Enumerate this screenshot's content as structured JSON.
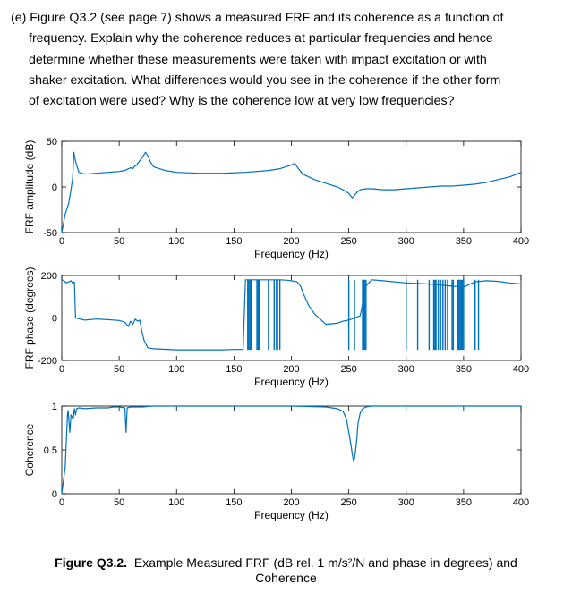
{
  "question": {
    "lines": [
      "(e) Figure Q3.2 (see page 7) shows a measured FRF and its coherence as a function of",
      "frequency. Explain why the coherence reduces at particular frequencies and hence",
      "determine whether these measurements were taken with impact excitation or with",
      "shaker excitation. What differences would you see in the coherence if the other form",
      "of excitation were used? Why is the coherence low at very low frequencies?"
    ]
  },
  "figure": {
    "caption_label": "Figure Q3.2.",
    "caption_text_1": "Example Measured FRF (dB rel. 1 m/s²/N and phase in degrees) and",
    "caption_text_2": "Coherence"
  },
  "chart_data": [
    {
      "type": "line",
      "title": "",
      "xlabel": "Frequency (Hz)",
      "ylabel": "FRF amplitude (dB)",
      "xlim": [
        0,
        400
      ],
      "ylim": [
        -50,
        50
      ],
      "xticks": [
        "0",
        "50",
        "100",
        "150",
        "200",
        "250",
        "300",
        "350",
        "400"
      ],
      "yticks": [
        "-50",
        "0",
        "50"
      ],
      "color": "#0072BD",
      "series": [
        {
          "x": [
            0,
            3,
            6,
            8,
            9.5,
            10.5,
            12,
            15,
            20,
            30,
            40,
            50,
            55,
            60,
            62,
            63,
            65,
            70,
            73,
            75,
            77,
            80,
            90,
            100,
            120,
            140,
            160,
            180,
            190,
            195,
            200,
            203,
            205,
            210,
            220,
            230,
            240,
            245,
            250,
            253,
            255,
            258,
            260,
            265,
            270,
            280,
            290,
            300,
            310,
            320,
            330,
            340,
            350,
            360,
            370,
            380,
            390,
            400
          ],
          "y": [
            -50,
            -30,
            -18,
            -3,
            10,
            38,
            28,
            16,
            14,
            15,
            16,
            17,
            18,
            21,
            20,
            22,
            24,
            32,
            38,
            34,
            28,
            22,
            18,
            16,
            15,
            15,
            16,
            18,
            20,
            22,
            24,
            26,
            22,
            14,
            8,
            4,
            0,
            -3,
            -7,
            -12,
            -9,
            -5,
            -3,
            -2,
            -2,
            -3,
            -3,
            -2,
            -1,
            0,
            1,
            1,
            2,
            3,
            5,
            8,
            11,
            16
          ]
        }
      ]
    },
    {
      "type": "line",
      "title": "",
      "xlabel": "Frequency (Hz)",
      "ylabel": "FRF phase (degrees)",
      "xlim": [
        0,
        400
      ],
      "ylim": [
        -200,
        200
      ],
      "xticks": [
        "0",
        "50",
        "100",
        "150",
        "200",
        "250",
        "300",
        "350",
        "400"
      ],
      "yticks": [
        "-200",
        "0",
        "200"
      ],
      "color": "#0072BD",
      "series": [
        {
          "x": [
            0,
            2,
            4,
            6,
            8,
            10,
            11,
            12,
            20,
            30,
            40,
            50,
            55,
            58,
            60,
            62,
            64,
            66,
            68,
            70,
            72,
            75,
            80,
            100,
            120,
            140,
            150,
            158,
            160,
            170,
            180,
            185,
            190,
            195,
            200,
            205,
            208,
            210,
            215,
            220,
            230,
            240,
            245,
            250,
            255,
            260,
            265,
            270,
            280,
            290,
            300,
            320,
            340,
            350,
            360,
            370,
            380,
            390,
            400
          ],
          "y": [
            180,
            175,
            165,
            170,
            175,
            160,
            170,
            0,
            -10,
            -5,
            -8,
            -12,
            -20,
            -40,
            -15,
            -30,
            -5,
            -15,
            -10,
            -70,
            -110,
            -140,
            -145,
            -150,
            -150,
            -150,
            -148,
            -148,
            180,
            180,
            180,
            180,
            180,
            178,
            175,
            170,
            150,
            120,
            60,
            20,
            -30,
            -25,
            -15,
            -10,
            0,
            10,
            150,
            180,
            175,
            170,
            165,
            160,
            150,
            145,
            170,
            175,
            172,
            165,
            160
          ]
        }
      ],
      "phase_wraps_hz": [
        162,
        163,
        164,
        165,
        170,
        171,
        172,
        180,
        185,
        187,
        188,
        190,
        250,
        255,
        262,
        263,
        264,
        265,
        300,
        310,
        320,
        324,
        325,
        326,
        328,
        330,
        332,
        334,
        336,
        340,
        341,
        345,
        346,
        347,
        348,
        349,
        350,
        360,
        363
      ]
    },
    {
      "type": "line",
      "title": "",
      "xlabel": "Frequency (Hz)",
      "ylabel": "Coherence",
      "xlim": [
        0,
        400
      ],
      "ylim": [
        0,
        1
      ],
      "xticks": [
        "0",
        "50",
        "100",
        "150",
        "200",
        "250",
        "300",
        "350",
        "400"
      ],
      "yticks": [
        "0",
        "0.5",
        "1"
      ],
      "color": "#0072BD",
      "series": [
        {
          "x": [
            0,
            3,
            5,
            5.5,
            7,
            8,
            10,
            11,
            12,
            13,
            15,
            20,
            30,
            40,
            45,
            50,
            55,
            56,
            57,
            60,
            70,
            80,
            100,
            150,
            200,
            230,
            240,
            245,
            248,
            250,
            252,
            253,
            254,
            255,
            256,
            257,
            258,
            260,
            262,
            265,
            270,
            280,
            300,
            350,
            400
          ],
          "y": [
            0,
            0.3,
            0.9,
            0.95,
            0.7,
            0.9,
            0.85,
            0.97,
            0.9,
            0.97,
            0.98,
            0.97,
            0.98,
            0.98,
            0.99,
            0.99,
            0.98,
            0.7,
            0.98,
            0.99,
            0.99,
            1.0,
            1.0,
            1.0,
            1.0,
            0.99,
            0.97,
            0.94,
            0.85,
            0.7,
            0.55,
            0.45,
            0.38,
            0.4,
            0.5,
            0.62,
            0.8,
            0.92,
            0.97,
            0.99,
            1.0,
            1.0,
            1.0,
            1.0,
            1.0
          ]
        }
      ]
    }
  ]
}
